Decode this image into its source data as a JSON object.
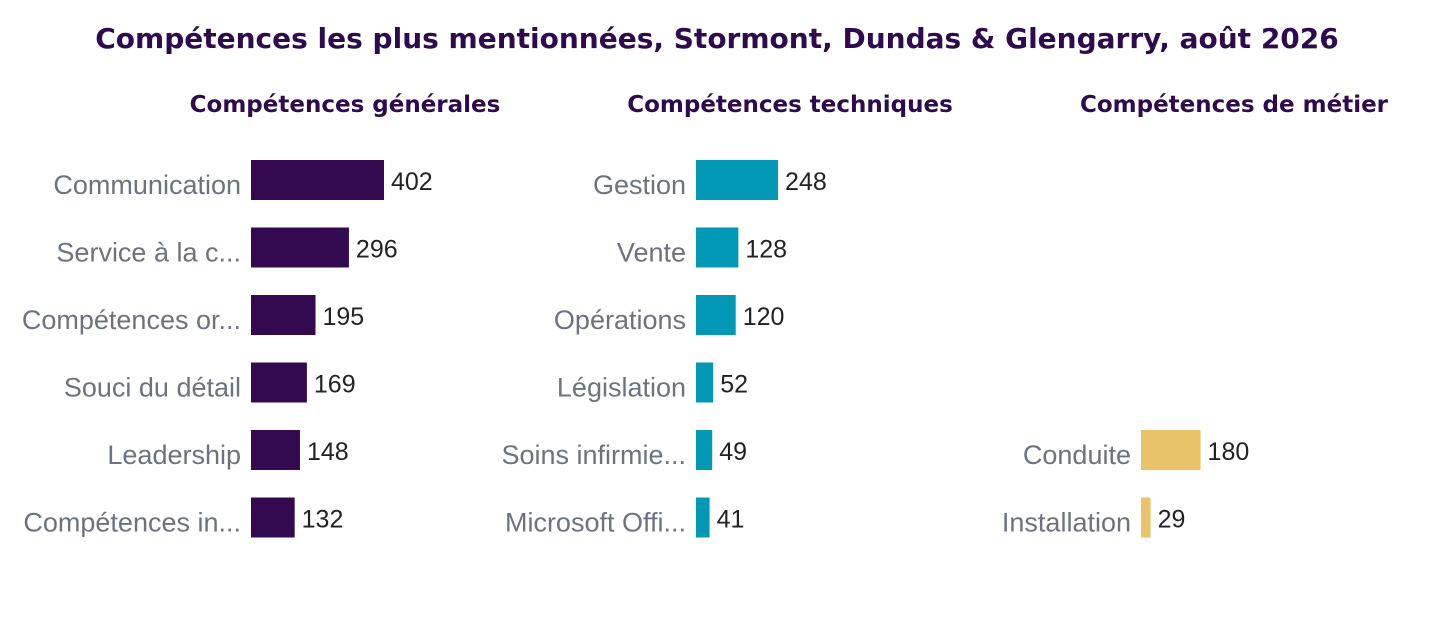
{
  "chart_data": {
    "type": "bar",
    "orientation": "horizontal",
    "title": "Compétences les plus mentionnées, Stormont, Dundas & Glengarry, août 2026",
    "panels": [
      {
        "title": "Compétences générales",
        "color": "#33094f",
        "categories": [
          "Communication",
          "Service à la c...",
          "Compétences or...",
          "Souci du détail",
          "Leadership",
          "Compétences in..."
        ],
        "values": [
          402,
          296,
          195,
          169,
          148,
          132
        ]
      },
      {
        "title": "Compétences techniques",
        "color": "#0098b5",
        "categories": [
          "Gestion",
          "Vente",
          "Opérations",
          "Législation",
          "Soins infirmie...",
          "Microsoft Offi..."
        ],
        "values": [
          248,
          128,
          120,
          52,
          49,
          41
        ]
      },
      {
        "title": "Compétences de métier",
        "color": "#e8c36a",
        "categories": [
          "",
          "",
          "",
          "",
          "Conduite",
          "Installation"
        ],
        "values": [
          null,
          null,
          null,
          null,
          180,
          29
        ]
      }
    ],
    "grid": false,
    "legend": "none"
  }
}
